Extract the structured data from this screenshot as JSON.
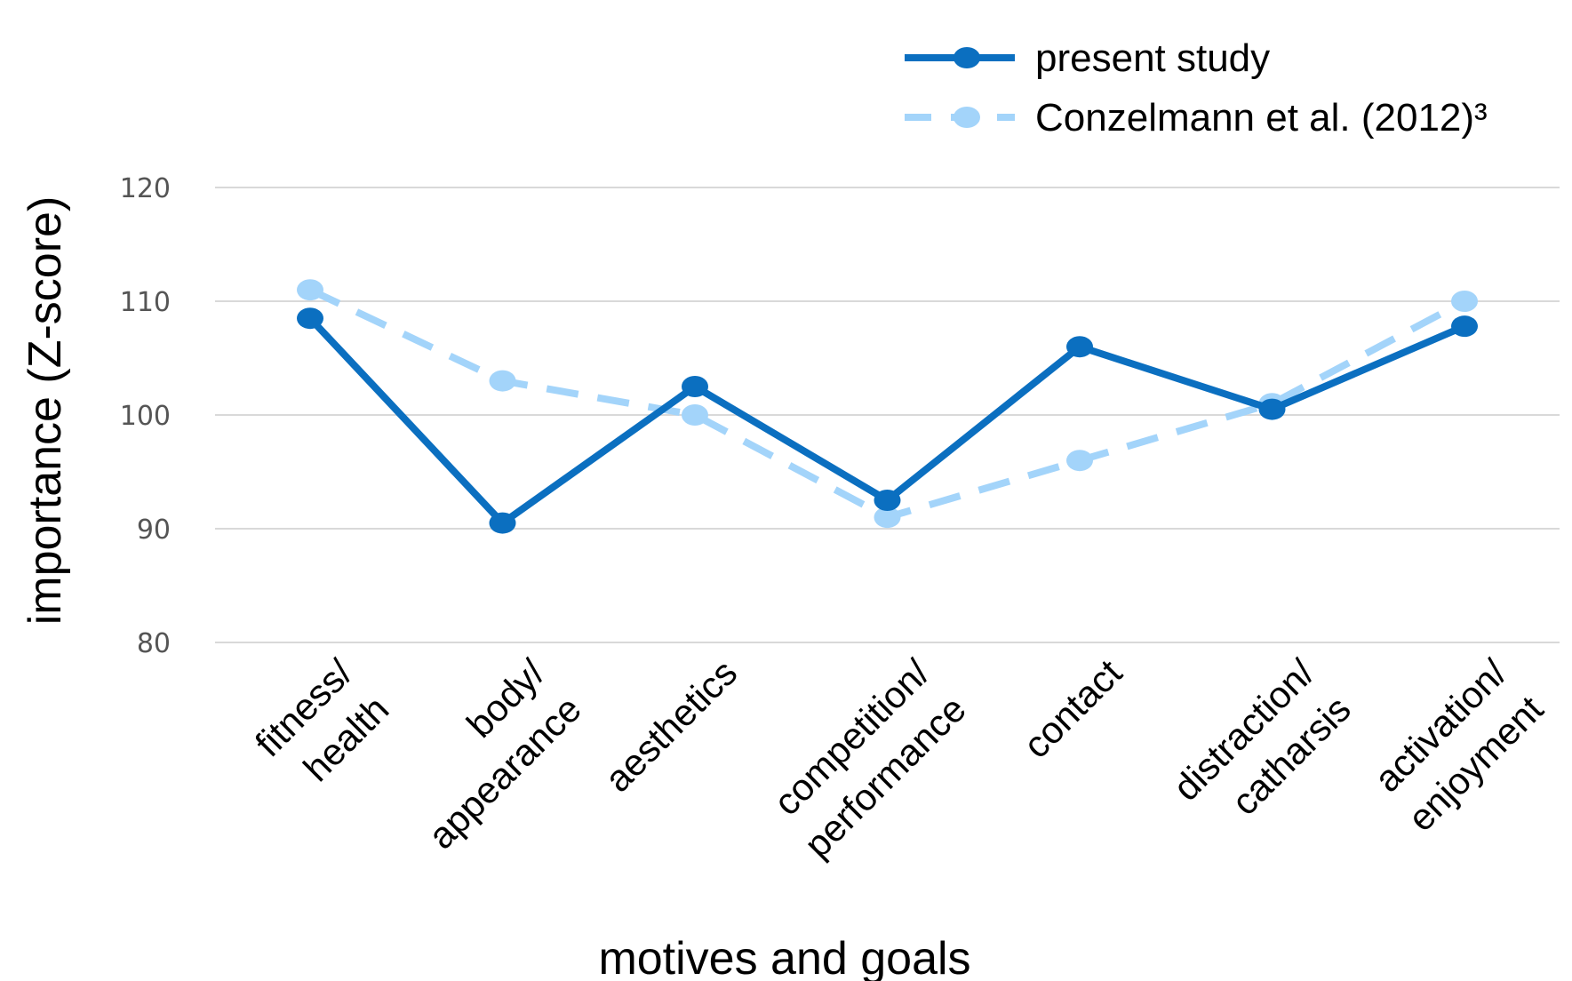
{
  "chart_data": {
    "type": "line",
    "xlabel": "motives and goals",
    "ylabel": "importance (Z-score)",
    "ylim": [
      80,
      120
    ],
    "yticks": [
      "80",
      "90",
      "100",
      "110",
      "120"
    ],
    "grid": true,
    "legend_position": "top-right",
    "categories": [
      [
        "fitness/",
        "health"
      ],
      [
        "body/",
        "appearance"
      ],
      [
        "aesthetics"
      ],
      [
        "competition/",
        "performance"
      ],
      [
        "contact"
      ],
      [
        "distraction/",
        "catharsis"
      ],
      [
        "activation/",
        "enjoyment"
      ]
    ],
    "series": [
      {
        "name": "present study",
        "color": "#0b6fc0",
        "dashed": false,
        "values": [
          108.5,
          90.5,
          102.5,
          92.5,
          106,
          100.5,
          107.8
        ]
      },
      {
        "name": "Conzelmann et al. (2012)³",
        "color": "#a3d4fa",
        "dashed": true,
        "values": [
          111,
          103,
          100,
          91,
          96,
          101,
          110
        ]
      }
    ]
  }
}
